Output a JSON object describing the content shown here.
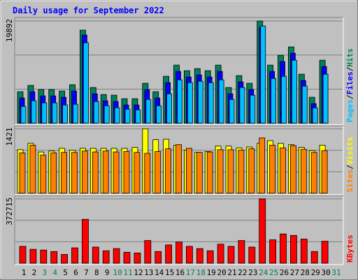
{
  "chart_data": {
    "type": "bar",
    "title": "Daily usage for September 2022",
    "title_color": "#0000ff",
    "separator": "/",
    "categories": [
      "1",
      "2",
      "3",
      "4",
      "5",
      "6",
      "7",
      "8",
      "9",
      "10",
      "11",
      "12",
      "13",
      "14",
      "15",
      "16",
      "17",
      "18",
      "19",
      "20",
      "21",
      "22",
      "23",
      "24",
      "25",
      "26",
      "27",
      "28",
      "29",
      "30",
      "31"
    ],
    "category_colors": [
      "#000000",
      "#000000",
      "#00805c",
      "#00805c",
      "#000000",
      "#000000",
      "#000000",
      "#000000",
      "#000000",
      "#00805c",
      "#00805c",
      "#000000",
      "#000000",
      "#000000",
      "#000000",
      "#000000",
      "#00805c",
      "#00805c",
      "#000000",
      "#000000",
      "#000000",
      "#000000",
      "#000000",
      "#00805c",
      "#00805c",
      "#000000",
      "#000000",
      "#000000",
      "#000000",
      "#000000",
      "#00805c"
    ],
    "panels": [
      {
        "ylim": [
          0,
          19892
        ],
        "yticks": [
          19892
        ],
        "series": [
          {
            "name": "Hits",
            "color": "#00805c",
            "values": [
              6130,
              7355,
              6540,
              6540,
              6265,
              7490,
              18115,
              6945,
              5585,
              5450,
              4770,
              4770,
              7765,
              6130,
              9125,
              11305,
              10215,
              10625,
              10215,
              11305,
              6945,
              9260,
              7765,
              19892,
              11305,
              13210,
              14845,
              9535,
              5040,
              12260,
              null
            ]
          },
          {
            "name": "Files",
            "color": "#0000ff",
            "values": [
              4900,
              6130,
              5310,
              5310,
              5040,
              6260,
              17160,
              5720,
              4360,
              4220,
              3540,
              3540,
              6540,
              4900,
              7900,
              10080,
              8990,
              9400,
              8990,
              10080,
              5720,
              8040,
              6540,
              18660,
              10080,
              12000,
              13620,
              8310,
              3810,
              11030,
              null
            ]
          },
          {
            "name": "Pages",
            "color": "#00c0ff",
            "values": [
              3270,
              4360,
              3950,
              3950,
              3540,
              3680,
              15660,
              4220,
              3400,
              3000,
              2720,
              2590,
              4630,
              3400,
              5720,
              8440,
              7900,
              8170,
              7900,
              8440,
              4630,
              6950,
              5450,
              18930,
              8710,
              9120,
              12260,
              7220,
              2990,
              9530,
              null
            ]
          }
        ]
      },
      {
        "ylim": [
          0,
          1421
        ],
        "yticks": [
          1421
        ],
        "series": [
          {
            "name": "Visits",
            "color": "#ffff00",
            "values": [
              960,
              1100,
              910,
              930,
              990,
              950,
              990,
              990,
              990,
              990,
              990,
              1010,
              1421,
              1180,
              1190,
              1060,
              950,
              900,
              920,
              1040,
              1040,
              1000,
              1020,
              1100,
              1160,
              1100,
              1070,
              1010,
              940,
              1060,
              null
            ]
          },
          {
            "name": "Sites",
            "color": "#ff8000",
            "values": [
              890,
              1060,
              840,
              890,
              900,
              900,
              930,
              910,
              930,
              910,
              920,
              900,
              880,
              920,
              980,
              1070,
              990,
              900,
              910,
              960,
              960,
              950,
              980,
              1220,
              1060,
              1000,
              1050,
              970,
              900,
              940,
              null
            ]
          }
        ]
      },
      {
        "ylim": [
          0,
          372715
        ],
        "yticks": [
          372715
        ],
        "series": [
          {
            "name": "KBytes",
            "color": "#ff0000",
            "values": [
              97400,
              80500,
              76200,
              67800,
              50800,
              88900,
              254100,
              93200,
              72000,
              84700,
              63500,
              59300,
              131300,
              67800,
              105900,
              122800,
              97400,
              84700,
              72000,
              110100,
              97400,
              131300,
              93200,
              372715,
              135500,
              169400,
              160900,
              139800,
              67800,
              127100,
              null
            ]
          }
        ]
      }
    ]
  }
}
